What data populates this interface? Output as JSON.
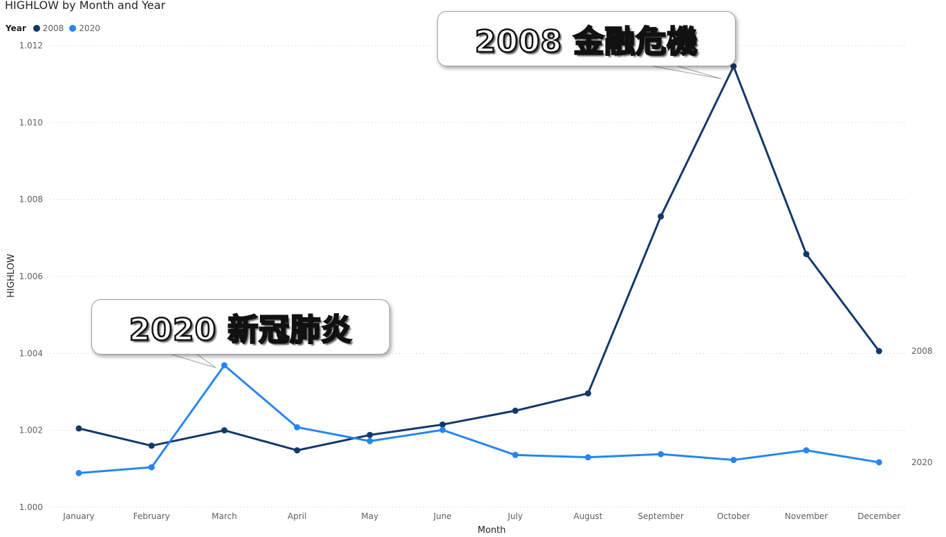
{
  "chart_data": {
    "type": "line",
    "title": "HIGHLOW by Month and Year",
    "xlabel": "Month",
    "ylabel": "HIGHLOW",
    "categories": [
      "January",
      "February",
      "March",
      "April",
      "May",
      "June",
      "July",
      "August",
      "September",
      "October",
      "November",
      "December"
    ],
    "ylim": [
      1.0,
      1.012
    ],
    "yticks": [
      "1.000",
      "1.002",
      "1.004",
      "1.006",
      "1.008",
      "1.010",
      "1.012"
    ],
    "grid": true,
    "legend": {
      "title": "Year",
      "position": "top-left",
      "entries": [
        "2008",
        "2020"
      ]
    },
    "series": [
      {
        "name": "2008",
        "color": "#12386b",
        "values": [
          1.00205,
          1.0016,
          1.002,
          1.00148,
          1.00188,
          1.00215,
          1.00251,
          1.00296,
          1.00756,
          1.01146,
          1.00658,
          1.00406
        ],
        "end_label": "2008"
      },
      {
        "name": "2020",
        "color": "#2586f0",
        "values": [
          1.00089,
          1.00104,
          1.00369,
          1.00208,
          1.00172,
          1.00201,
          1.00136,
          1.0013,
          1.00138,
          1.00123,
          1.00148,
          1.00117
        ],
        "end_label": "2020"
      }
    ],
    "annotations": [
      {
        "text": "2008 金融危機",
        "series": "2008",
        "category": "October"
      },
      {
        "text": "2020 新冠肺炎",
        "series": "2020",
        "category": "March"
      }
    ]
  }
}
